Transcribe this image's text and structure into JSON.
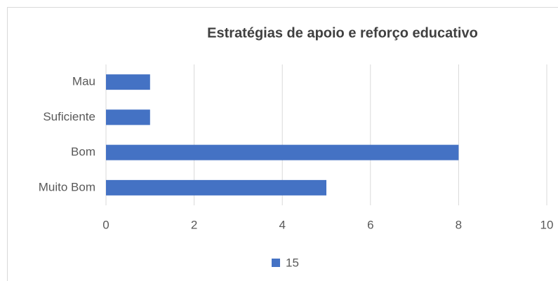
{
  "chart_data": {
    "type": "bar",
    "orientation": "horizontal",
    "title": "Estratégias de apoio e reforço educativo",
    "categories": [
      "Mau",
      "Suficiente",
      "Bom",
      "Muito Bom"
    ],
    "series": [
      {
        "name": "15",
        "color": "#4472c4",
        "values": [
          1,
          1,
          8,
          5
        ]
      }
    ],
    "xlim": [
      0,
      10
    ],
    "xticks": [
      0,
      2,
      4,
      6,
      8,
      10
    ],
    "grid": true,
    "legend": "bottom"
  }
}
